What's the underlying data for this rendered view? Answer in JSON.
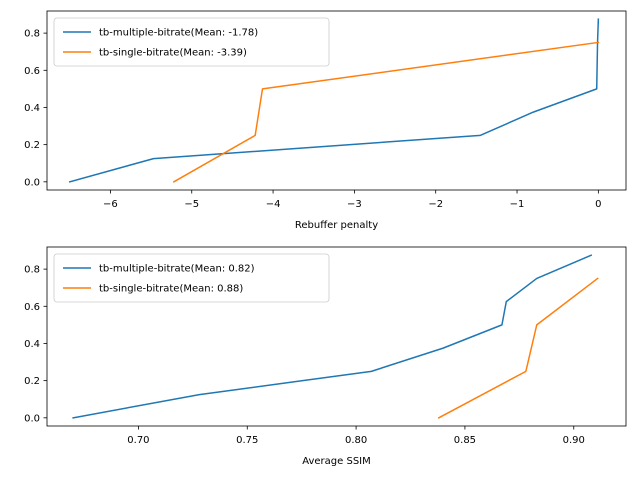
{
  "chart_data": [
    {
      "type": "line",
      "xlabel": "Rebuffer penalty",
      "ylabel": "",
      "xlim": [
        -6.78,
        0.34
      ],
      "ylim": [
        -0.044,
        0.919
      ],
      "xticks": [
        -6,
        -5,
        -4,
        -3,
        -2,
        -1,
        0
      ],
      "xtick_labels": [
        "−6",
        "−5",
        "−4",
        "−3",
        "−2",
        "−1",
        "0"
      ],
      "yticks": [
        0.0,
        0.2,
        0.4,
        0.6,
        0.8
      ],
      "ytick_labels": [
        "0.0",
        "0.2",
        "0.4",
        "0.6",
        "0.8"
      ],
      "grid": false,
      "legend_position": "top-left",
      "series": [
        {
          "name": "tb-multiple-bitrate(Mean: -1.78)",
          "color": "#1f77b4",
          "x": [
            -6.5,
            -5.47,
            -1.45,
            -0.8,
            -0.02,
            -0.01,
            0.0
          ],
          "y": [
            0.0,
            0.125,
            0.25,
            0.375,
            0.5,
            0.75,
            0.875
          ]
        },
        {
          "name": "tb-single-bitrate(Mean: -3.39)",
          "color": "#ff7f0e",
          "x": [
            -5.22,
            -4.22,
            -4.13,
            0.0
          ],
          "y": [
            0.0,
            0.25,
            0.5,
            0.75
          ]
        }
      ]
    },
    {
      "type": "line",
      "xlabel": "Average SSIM",
      "ylabel": "",
      "xlim": [
        0.658,
        0.924
      ],
      "ylim": [
        -0.044,
        0.919
      ],
      "xticks": [
        0.7,
        0.75,
        0.8,
        0.85,
        0.9
      ],
      "xtick_labels": [
        "0.70",
        "0.75",
        "0.80",
        "0.85",
        "0.90"
      ],
      "yticks": [
        0.0,
        0.2,
        0.4,
        0.6,
        0.8
      ],
      "ytick_labels": [
        "0.0",
        "0.2",
        "0.4",
        "0.6",
        "0.8"
      ],
      "grid": false,
      "legend_position": "top-left",
      "series": [
        {
          "name": "tb-multiple-bitrate(Mean: 0.82)",
          "color": "#1f77b4",
          "x": [
            0.67,
            0.728,
            0.807,
            0.84,
            0.867,
            0.869,
            0.883,
            0.908
          ],
          "y": [
            0.0,
            0.125,
            0.25,
            0.375,
            0.5,
            0.625,
            0.75,
            0.875
          ]
        },
        {
          "name": "tb-single-bitrate(Mean: 0.88)",
          "color": "#ff7f0e",
          "x": [
            0.838,
            0.878,
            0.883,
            0.911
          ],
          "y": [
            0.0,
            0.25,
            0.5,
            0.75
          ]
        }
      ]
    }
  ]
}
